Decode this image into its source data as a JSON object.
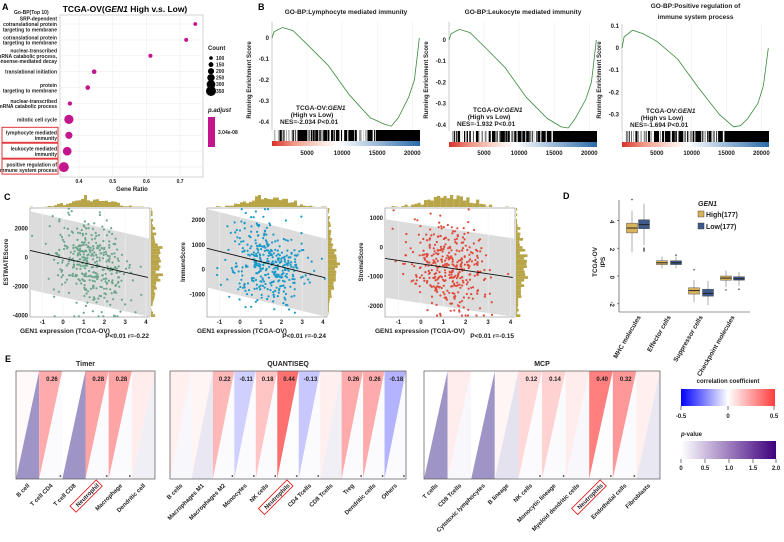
{
  "panel_a": {
    "label": "A",
    "title": {
      "prefix": "TCGA-OV(",
      "gene": "GEN1",
      "suffix": " High v.s. Low)"
    },
    "subtitle": "Go-BP(Top 10)",
    "xlabel": "Gene Ratio",
    "xticks": [
      "0.4",
      "0.5",
      "0.6",
      "0.7"
    ],
    "terms": [
      {
        "lines": [
          "SRP-dependent",
          "cotranslational protein",
          "targeting to membrane"
        ],
        "gene_ratio": 0.745,
        "count": 110,
        "highlighted": false
      },
      {
        "lines": [
          "cotranslational protein",
          "targeting to membrane"
        ],
        "gene_ratio": 0.718,
        "count": 115,
        "highlighted": false
      },
      {
        "lines": [
          "nuclear-transcribed",
          "mRNA catabolic process,",
          "nonsense-mediated decay"
        ],
        "gene_ratio": 0.612,
        "count": 120,
        "highlighted": false
      },
      {
        "lines": [
          "translational initiation"
        ],
        "gene_ratio": 0.445,
        "count": 140,
        "highlighted": false
      },
      {
        "lines": [
          "protein",
          "targeting to membrane"
        ],
        "gene_ratio": 0.426,
        "count": 140,
        "highlighted": false
      },
      {
        "lines": [
          "nuclear-transcribed",
          "mRNA catabolic process"
        ],
        "gene_ratio": 0.373,
        "count": 130,
        "highlighted": false
      },
      {
        "lines": [
          "mitotic cell cycle"
        ],
        "gene_ratio": 0.37,
        "count": 320,
        "highlighted": false
      },
      {
        "lines": [
          "lymphocyte mediated",
          "immunity"
        ],
        "gene_ratio": 0.37,
        "count": 240,
        "highlighted": true
      },
      {
        "lines": [
          "leukocyte mediated",
          "immunity"
        ],
        "gene_ratio": 0.365,
        "count": 300,
        "highlighted": true
      },
      {
        "lines": [
          "positive regulation of",
          "immune system process"
        ],
        "gene_ratio": 0.355,
        "count": 350,
        "highlighted": true
      }
    ],
    "count_legend": {
      "title": "Count",
      "values": [
        "100",
        "150",
        "200",
        "250",
        "300",
        "350"
      ]
    },
    "padjust_legend": {
      "title": "p.adjust",
      "value": "3.04e-08"
    },
    "dot_color": "#c4168c"
  },
  "panel_b": {
    "label": "B",
    "ylabel": "Running Enrichment Score",
    "xticks": [
      "5000",
      "10000",
      "15000",
      "20000"
    ],
    "plots": [
      {
        "title": [
          "GO-BP:Lymphocyte mediated immunity"
        ],
        "yticks": [
          "0",
          "-0.1",
          "-0.2",
          "-0.3",
          "-0.4"
        ],
        "ytick_values": [
          0,
          -0.1,
          -0.2,
          -0.3,
          -0.4
        ],
        "annotation": {
          "cohort": "TCGA-OV:",
          "gene": "GEN1",
          "comparison": "(High vs Low)",
          "nes": "NES=-2.034 ",
          "p": "P<0.01"
        },
        "curve": [
          [
            0,
            0
          ],
          [
            300,
            0.03
          ],
          [
            1500,
            0.05
          ],
          [
            3000,
            0.035
          ],
          [
            5000,
            -0.03
          ],
          [
            8000,
            -0.13
          ],
          [
            11000,
            -0.27
          ],
          [
            14000,
            -0.38
          ],
          [
            16000,
            -0.41
          ],
          [
            17000,
            -0.42
          ],
          [
            18000,
            -0.38
          ],
          [
            19500,
            -0.28
          ],
          [
            20300,
            -0.2
          ],
          [
            20800,
            -0.06
          ],
          [
            21000,
            0
          ]
        ]
      },
      {
        "title": [
          "GO-BP:Leukocyte mediated immunity"
        ],
        "yticks": [
          "0",
          "-0.1",
          "-0.2",
          "-0.3",
          "-0.4"
        ],
        "ytick_values": [
          0,
          -0.1,
          -0.2,
          -0.3,
          -0.4
        ],
        "annotation": {
          "cohort": "TCGA-OV:",
          "gene": "GEN1",
          "comparison": "(High vs Low)",
          "nes": "NES=-1.932 ",
          "p": "P<0.01"
        },
        "curve": [
          [
            0,
            0
          ],
          [
            300,
            0.03
          ],
          [
            1500,
            0.05
          ],
          [
            3000,
            0.035
          ],
          [
            5000,
            -0.03
          ],
          [
            8000,
            -0.13
          ],
          [
            11000,
            -0.27
          ],
          [
            14000,
            -0.37
          ],
          [
            16000,
            -0.41
          ],
          [
            17000,
            -0.415
          ],
          [
            18000,
            -0.37
          ],
          [
            19500,
            -0.28
          ],
          [
            20300,
            -0.2
          ],
          [
            20800,
            -0.06
          ],
          [
            21000,
            0
          ]
        ]
      },
      {
        "title": [
          "GO-BP:Positive regulation of",
          "immune system process"
        ],
        "yticks": [
          "0.1",
          "0",
          "-0.1",
          "-0.2",
          "-0.3"
        ],
        "ytick_values": [
          0.1,
          0,
          -0.1,
          -0.2,
          -0.3
        ],
        "annotation": {
          "cohort": "TCGA-OV:",
          "gene": "GEN1",
          "comparison": "(High vs Low)",
          "nes": "NES=-1.694 ",
          "p": "P<0.01"
        },
        "curve": [
          [
            0,
            0
          ],
          [
            300,
            0.05
          ],
          [
            1500,
            0.08
          ],
          [
            3000,
            0.065
          ],
          [
            5000,
            0.03
          ],
          [
            8000,
            -0.05
          ],
          [
            11000,
            -0.18
          ],
          [
            14000,
            -0.3
          ],
          [
            16000,
            -0.355
          ],
          [
            17000,
            -0.35
          ],
          [
            18000,
            -0.32
          ],
          [
            19500,
            -0.25
          ],
          [
            20300,
            -0.17
          ],
          [
            20800,
            -0.05
          ],
          [
            21000,
            0
          ]
        ]
      }
    ],
    "curve_color": "#3a8a3a"
  },
  "panel_c": {
    "label": "C",
    "xlabel": "GEN1 expression (TCGA-OV)",
    "xticks": [
      "-1",
      "0",
      "1",
      "2",
      "3",
      "4"
    ],
    "xtick_values": [
      -1,
      0,
      1,
      2,
      3,
      4
    ],
    "xlim": [
      -1.6,
      4.2
    ],
    "histogram_color": "#b8a548",
    "plots": [
      {
        "ylabel": "ESTIMATEScore",
        "stat": "P<0.01 r=-0.22",
        "color": "#6aa58c",
        "yticks": [
          "2000",
          "0",
          "-2000",
          "-4000"
        ],
        "ytick_values": [
          2000,
          0,
          -2000,
          -4000
        ],
        "ylim": [
          -4100,
          3400
        ],
        "fit": [
          [
            -1.6,
            480
          ],
          [
            4.1,
            -1380
          ]
        ],
        "r": -0.22
      },
      {
        "ylabel": "ImmuneScore",
        "stat": "P<0.01 r=-0.24",
        "color": "#1a9ac9",
        "yticks": [
          "2000",
          "1000",
          "0",
          "-1000"
        ],
        "ytick_values": [
          2000,
          1000,
          0,
          -1000
        ],
        "ylim": [
          -1920,
          2490
        ],
        "fit": [
          [
            -1.6,
            860
          ],
          [
            4.1,
            -330
          ]
        ],
        "r": -0.24
      },
      {
        "ylabel": "StromalScore",
        "stat": "P<0.01 r=-0.15",
        "color": "#e0493a",
        "yticks": [
          "1000",
          "0",
          "-1000",
          "-2000"
        ],
        "ytick_values": [
          1000,
          0,
          -1000,
          -2000
        ],
        "ylim": [
          -2380,
          1345
        ],
        "fit": [
          [
            -1.6,
            -380
          ],
          [
            4.1,
            -1030
          ]
        ],
        "r": -0.15
      }
    ]
  },
  "panel_d": {
    "label": "D",
    "ylabel": [
      "TCGA-OV",
      "IPS"
    ],
    "yticks": [
      "4",
      "2",
      "0",
      "-2"
    ],
    "ytick_values": [
      4,
      2,
      0,
      -2
    ],
    "legend": {
      "title": "GEN1",
      "high": "High(177)",
      "low": "Low(177)"
    },
    "colors": {
      "high": "#d8b35a",
      "low": "#3e5a8a"
    },
    "categories": [
      "MHC molecules",
      "Effector cells",
      "Suppressor cells",
      "Checkpoint molecules"
    ],
    "high": [
      {
        "min": 1.7,
        "q1": 3.1,
        "median": 3.45,
        "q3": 3.8,
        "max": 4.7,
        "outliers": [
          5.5
        ]
      },
      {
        "min": 0.55,
        "q1": 0.82,
        "median": 0.95,
        "q3": 1.1,
        "max": 1.4,
        "outliers": []
      },
      {
        "min": -1.9,
        "q1": -1.3,
        "median": -1.05,
        "q3": -0.85,
        "max": -0.3,
        "outliers": [
          0.45
        ]
      },
      {
        "min": -0.8,
        "q1": -0.3,
        "median": -0.15,
        "q3": 0.0,
        "max": 0.4,
        "outliers": [
          -1.0
        ]
      }
    ],
    "low": [
      {
        "min": 2.2,
        "q1": 3.4,
        "median": 3.7,
        "q3": 4.05,
        "max": 5.2,
        "outliers": [
          1.8,
          1.9,
          2.0
        ]
      },
      {
        "min": 0.55,
        "q1": 0.82,
        "median": 0.95,
        "q3": 1.1,
        "max": 1.4,
        "outliers": [
          1.5
        ]
      },
      {
        "min": -2.1,
        "q1": -1.45,
        "median": -1.25,
        "q3": -0.95,
        "max": -0.35,
        "outliers": []
      },
      {
        "min": -0.7,
        "q1": -0.3,
        "median": -0.2,
        "q3": -0.05,
        "max": 0.3,
        "outliers": [
          -0.95
        ]
      }
    ]
  },
  "panel_e": {
    "label": "E",
    "heatmaps": [
      {
        "title": "Timer",
        "cells": [
          {
            "name": "B cell",
            "corr": 0.02,
            "p": 1.3,
            "label": "",
            "star": false
          },
          {
            "name": "T cell CD4",
            "corr": 0.26,
            "p": 0.05,
            "label": "0.26",
            "star": true
          },
          {
            "name": "T cell CD8",
            "corr": 0.0,
            "p": 1.3,
            "label": "",
            "star": false
          },
          {
            "name": "Neutrophil",
            "corr": 0.28,
            "p": 0.05,
            "label": "0.28",
            "star": true,
            "highlighted": true
          },
          {
            "name": "Macrophage",
            "corr": 0.28,
            "p": 0.05,
            "label": "0.28",
            "star": true
          },
          {
            "name": "Dendritic cell",
            "corr": 0.06,
            "p": 0.2,
            "label": "",
            "star": false
          }
        ]
      },
      {
        "title": "QUANTISEQ",
        "cells": [
          {
            "name": "B cells",
            "corr": 0.05,
            "p": 0.1,
            "label": "",
            "star": false
          },
          {
            "name": "Macrophages M1",
            "corr": 0.03,
            "p": 0.3,
            "label": "",
            "star": false
          },
          {
            "name": "Macrophages M2",
            "corr": 0.22,
            "p": 0.05,
            "label": "0.22",
            "star": true
          },
          {
            "name": "Monocytes",
            "corr": -0.11,
            "p": 0.05,
            "label": "-0.11",
            "star": true
          },
          {
            "name": "NK cells",
            "corr": 0.18,
            "p": 0.05,
            "label": "0.18",
            "star": true
          },
          {
            "name": "Neutrophils",
            "corr": 0.44,
            "p": 0.02,
            "label": "0.44",
            "star": true,
            "highlighted": true
          },
          {
            "name": "CD4 Tcells",
            "corr": -0.13,
            "p": 0.05,
            "label": "-0.13",
            "star": true
          },
          {
            "name": "CD8 Tcells",
            "corr": 0.05,
            "p": 0.2,
            "label": "",
            "star": false
          },
          {
            "name": "Treg",
            "corr": 0.26,
            "p": 0.05,
            "label": "0.26",
            "star": true
          },
          {
            "name": "Dendritic cells",
            "corr": 0.26,
            "p": 0.05,
            "label": "0.26",
            "star": true
          },
          {
            "name": "Others",
            "corr": -0.18,
            "p": 0.05,
            "label": "-0.18",
            "star": true
          }
        ]
      },
      {
        "title": "MCP",
        "cells": [
          {
            "name": "T cells",
            "corr": 0.0,
            "p": 1.3,
            "label": "",
            "star": false
          },
          {
            "name": "CD8 Tcells",
            "corr": 0.06,
            "p": 0.1,
            "label": "",
            "star": false
          },
          {
            "name": "Cytotoxic lymphocytes",
            "corr": 0.0,
            "p": 1.3,
            "label": "",
            "star": false
          },
          {
            "name": "B lineage",
            "corr": 0.03,
            "p": 0.35,
            "label": "",
            "star": false
          },
          {
            "name": "NK cells",
            "corr": 0.12,
            "p": 0.05,
            "label": "0.12",
            "star": true
          },
          {
            "name": "Monocytic lineage",
            "corr": 0.14,
            "p": 0.05,
            "label": "0.14",
            "star": true
          },
          {
            "name": "Myeloid dendritic cells",
            "corr": 0.06,
            "p": 0.1,
            "label": "",
            "star": false
          },
          {
            "name": "Neutrophils",
            "corr": 0.4,
            "p": 0.02,
            "label": "0.40",
            "star": true,
            "highlighted": true
          },
          {
            "name": "Endothelial cells",
            "corr": 0.32,
            "p": 0.05,
            "label": "0.32",
            "star": true
          },
          {
            "name": "Fibroblasts",
            "corr": 0.05,
            "p": 0.3,
            "label": "",
            "star": false
          }
        ]
      }
    ],
    "star_symbol": "*",
    "corr_legend": {
      "title": "correlation coefficient",
      "ticks": [
        "-0.5",
        "0",
        "0.5"
      ],
      "colors": {
        "neg": "#0000ff",
        "zero": "#ffffff",
        "pos": "#ff3d3d"
      }
    },
    "p_legend": {
      "title_p": "p",
      "title_rest": "-value",
      "ticks": [
        "0",
        "0.5",
        "1.0",
        "1.5",
        "2.0"
      ],
      "colors": {
        "low": "#ffffff",
        "high": "#3f007d"
      }
    },
    "highlight_color": "#e02020"
  }
}
